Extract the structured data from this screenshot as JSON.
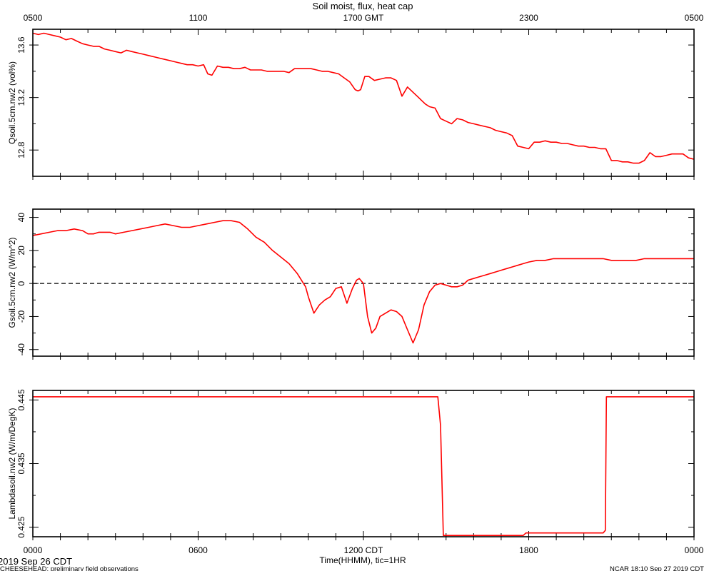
{
  "chart_data": [
    {
      "type": "line",
      "title": "Soil moist, flux, heat cap",
      "top_axis_label": "GMT",
      "top_tick_labels": [
        "0500",
        "1100",
        "1700",
        "2300",
        "0500"
      ],
      "ylabel": "Qsoil.5cm.nw2 (vol%)",
      "ylim": [
        12.6,
        13.72
      ],
      "yticks": [
        12.8,
        13.2,
        13.6
      ],
      "series_color": "#ff0000",
      "series": [
        {
          "x": [
            0,
            0.2,
            0.4,
            0.6,
            0.8,
            1.0,
            1.2,
            1.4,
            1.6,
            1.8,
            2.0,
            2.2,
            2.4,
            2.6,
            2.8,
            3.0,
            3.2,
            3.4,
            3.6,
            3.8,
            4.0,
            4.2,
            4.4,
            4.6,
            4.8,
            5.0,
            5.2,
            5.4,
            5.6,
            5.8,
            6.0,
            6.2,
            6.35,
            6.5,
            6.7,
            6.9,
            7.1,
            7.3,
            7.5,
            7.7,
            7.9,
            8.1,
            8.3,
            8.5,
            8.7,
            8.9,
            9.1,
            9.3,
            9.5,
            9.7,
            9.9,
            10.1,
            10.3,
            10.5,
            10.7,
            10.9,
            11.1,
            11.3,
            11.5,
            11.7,
            11.8,
            11.9,
            12.05,
            12.2,
            12.4,
            12.6,
            12.8,
            13.0,
            13.2,
            13.4,
            13.6,
            13.8,
            14.0,
            14.1,
            14.25,
            14.4,
            14.6,
            14.8,
            15.0,
            15.2,
            15.4,
            15.6,
            15.8,
            16.0,
            16.2,
            16.4,
            16.6,
            16.8,
            17.0,
            17.2,
            17.4,
            17.6,
            17.8,
            18.0,
            18.2,
            18.4,
            18.6,
            18.8,
            19.0,
            19.2,
            19.4,
            19.6,
            19.8,
            20.0,
            20.2,
            20.4,
            20.6,
            20.8,
            21.0,
            21.2,
            21.4,
            21.6,
            21.8,
            22.0,
            22.2,
            22.4,
            22.6,
            22.8,
            23.0,
            23.2,
            23.4,
            23.6,
            23.8,
            24.0
          ],
          "y": [
            13.69,
            13.68,
            13.69,
            13.68,
            13.67,
            13.66,
            13.64,
            13.65,
            13.63,
            13.61,
            13.6,
            13.59,
            13.59,
            13.57,
            13.56,
            13.55,
            13.54,
            13.56,
            13.55,
            13.54,
            13.53,
            13.52,
            13.51,
            13.5,
            13.49,
            13.48,
            13.47,
            13.46,
            13.45,
            13.45,
            13.44,
            13.45,
            13.38,
            13.37,
            13.44,
            13.43,
            13.43,
            13.42,
            13.42,
            13.43,
            13.41,
            13.41,
            13.41,
            13.4,
            13.4,
            13.4,
            13.4,
            13.39,
            13.42,
            13.42,
            13.42,
            13.42,
            13.41,
            13.4,
            13.4,
            13.39,
            13.38,
            13.35,
            13.32,
            13.26,
            13.25,
            13.26,
            13.36,
            13.36,
            13.33,
            13.34,
            13.35,
            13.35,
            13.33,
            13.21,
            13.28,
            13.24,
            13.2,
            13.18,
            13.15,
            13.13,
            13.12,
            13.04,
            13.02,
            13.0,
            13.04,
            13.03,
            13.01,
            13.0,
            12.99,
            12.98,
            12.97,
            12.95,
            12.94,
            12.93,
            12.91,
            12.83,
            12.82,
            12.81,
            12.86,
            12.86,
            12.87,
            12.86,
            12.86,
            12.85,
            12.85,
            12.84,
            12.83,
            12.83,
            12.82,
            12.82,
            12.81,
            12.81,
            12.72,
            12.72,
            12.71,
            12.71,
            12.7,
            12.7,
            12.72,
            12.78,
            12.75,
            12.75,
            12.76,
            12.77,
            12.77,
            12.77,
            12.74,
            12.73
          ]
        }
      ]
    },
    {
      "type": "line",
      "ylabel": "Gsoil.5cm.nw2 (W/m^2)",
      "ylim": [
        -44,
        45
      ],
      "yticks": [
        -40,
        -20,
        0,
        20,
        40
      ],
      "zero_line": "dashed",
      "series_color": "#ff0000",
      "series": [
        {
          "x": [
            0,
            0.3,
            0.6,
            0.9,
            1.2,
            1.5,
            1.8,
            2.0,
            2.2,
            2.4,
            2.6,
            2.8,
            3.0,
            3.3,
            3.6,
            3.9,
            4.2,
            4.5,
            4.8,
            5.1,
            5.4,
            5.7,
            6.0,
            6.3,
            6.6,
            6.9,
            7.2,
            7.5,
            7.8,
            8.1,
            8.4,
            8.7,
            9.0,
            9.3,
            9.6,
            9.9,
            10.0,
            10.2,
            10.4,
            10.6,
            10.8,
            11.0,
            11.2,
            11.4,
            11.6,
            11.75,
            11.85,
            12.0,
            12.15,
            12.3,
            12.45,
            12.6,
            12.8,
            13.0,
            13.2,
            13.4,
            13.6,
            13.8,
            14.0,
            14.2,
            14.4,
            14.6,
            14.8,
            15.0,
            15.2,
            15.4,
            15.6,
            15.8,
            16.0,
            16.2,
            16.4,
            16.6,
            16.8,
            17.0,
            17.2,
            17.4,
            17.6,
            17.8,
            18.0,
            18.3,
            18.6,
            18.9,
            19.2,
            19.5,
            19.8,
            20.1,
            20.4,
            20.7,
            21.0,
            21.3,
            21.6,
            21.9,
            22.2,
            22.5,
            22.8,
            23.1,
            23.4,
            23.7,
            24.0
          ],
          "y": [
            29,
            30,
            31,
            32,
            32,
            33,
            32,
            30,
            30,
            31,
            31,
            31,
            30,
            31,
            32,
            33,
            34,
            35,
            36,
            35,
            34,
            34,
            35,
            36,
            37,
            38,
            38,
            37,
            33,
            28,
            25,
            20,
            16,
            12,
            6,
            -2,
            -8,
            -18,
            -13,
            -10,
            -8,
            -3,
            -2,
            -12,
            -3,
            2,
            3,
            0,
            -20,
            -30,
            -27,
            -20,
            -18,
            -16,
            -17,
            -20,
            -28,
            -36,
            -28,
            -13,
            -5,
            -1,
            0,
            -1,
            -2,
            -2,
            -1,
            2,
            3,
            4,
            5,
            6,
            7,
            8,
            9,
            10,
            11,
            12,
            13,
            14,
            14,
            15,
            15,
            15,
            15,
            15,
            15,
            15,
            14,
            14,
            14,
            14,
            15,
            15,
            15,
            15,
            15,
            15,
            15
          ]
        }
      ]
    },
    {
      "type": "line",
      "ylabel": "Lambdasoil.nw2 (W/m/DegK)",
      "ylim": [
        0.4235,
        0.4465
      ],
      "yticks": [
        0.425,
        0.435,
        0.445
      ],
      "xlabel": "Time(HHMM), tic=1HR",
      "x_range_hours": [
        0,
        24
      ],
      "x_tick_labels": [
        "0000",
        "0600",
        "1200 CDT",
        "1800",
        "0000"
      ],
      "series_color": "#ff0000",
      "series": [
        {
          "x": [
            0,
            14.7,
            14.8,
            14.9,
            17.8,
            17.9,
            20.7,
            20.78,
            20.82,
            24.0
          ],
          "y": [
            0.4455,
            0.4455,
            0.441,
            0.4237,
            0.4237,
            0.4241,
            0.4241,
            0.4245,
            0.4455,
            0.4455
          ]
        }
      ]
    }
  ],
  "footer": {
    "date_label": "2019 Sep 26 CDT",
    "project_note": "CHEESEHEAD: preliminary field observations",
    "stamp": "NCAR 18:10 Sep 27 2019 CDT"
  }
}
